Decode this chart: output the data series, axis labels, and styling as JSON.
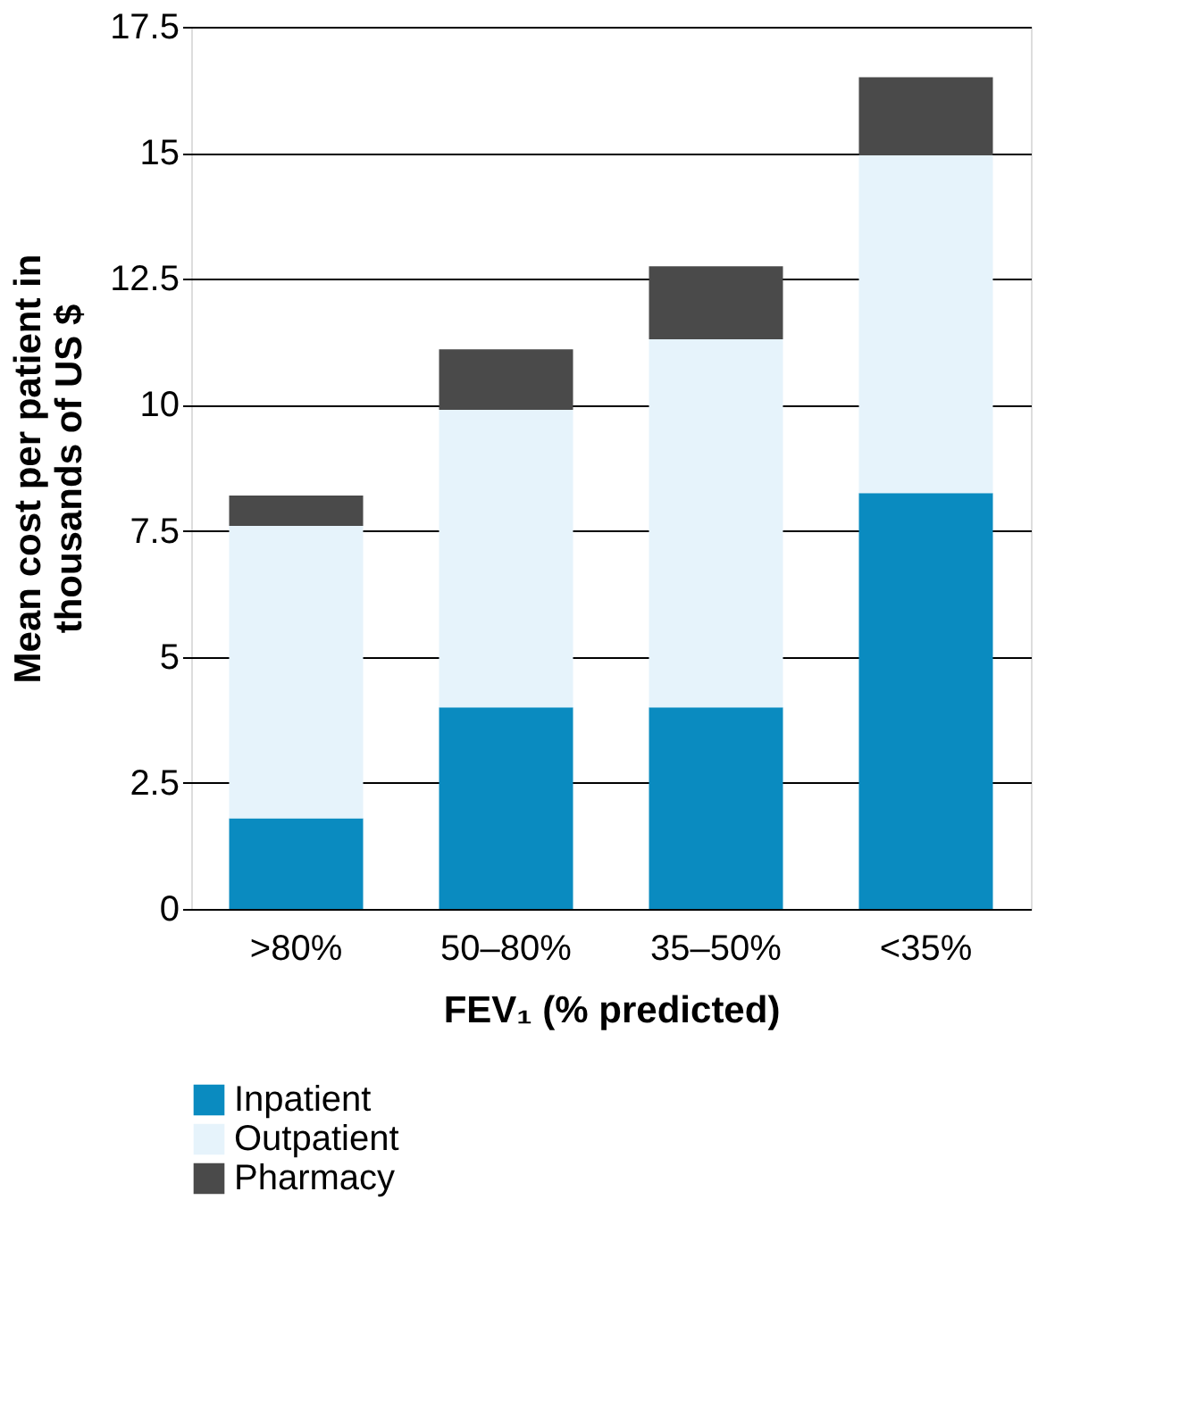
{
  "chart_data": {
    "type": "bar",
    "stacked": true,
    "xlabel": "FEV₁ (% predicted)",
    "ylabel": "Mean cost per patient in thousands of US $",
    "categories": [
      ">80%",
      "50–80%",
      "35–50%",
      "<35%"
    ],
    "series": [
      {
        "name": "Inpatient",
        "color": "#0a8bc0",
        "values": [
          1.8,
          4.0,
          4.0,
          8.25
        ]
      },
      {
        "name": "Outpatient",
        "color": "#e6f3fb",
        "values": [
          5.8,
          5.9,
          7.3,
          6.7
        ]
      },
      {
        "name": "Pharmacy",
        "color": "#4a4a4a",
        "values": [
          0.6,
          1.2,
          1.45,
          1.55
        ]
      }
    ],
    "ylim": [
      0,
      17.5
    ],
    "yticks": [
      0,
      2.5,
      5,
      7.5,
      10,
      12.5,
      15,
      17.5
    ],
    "grid": "y",
    "legend": "bottom"
  }
}
